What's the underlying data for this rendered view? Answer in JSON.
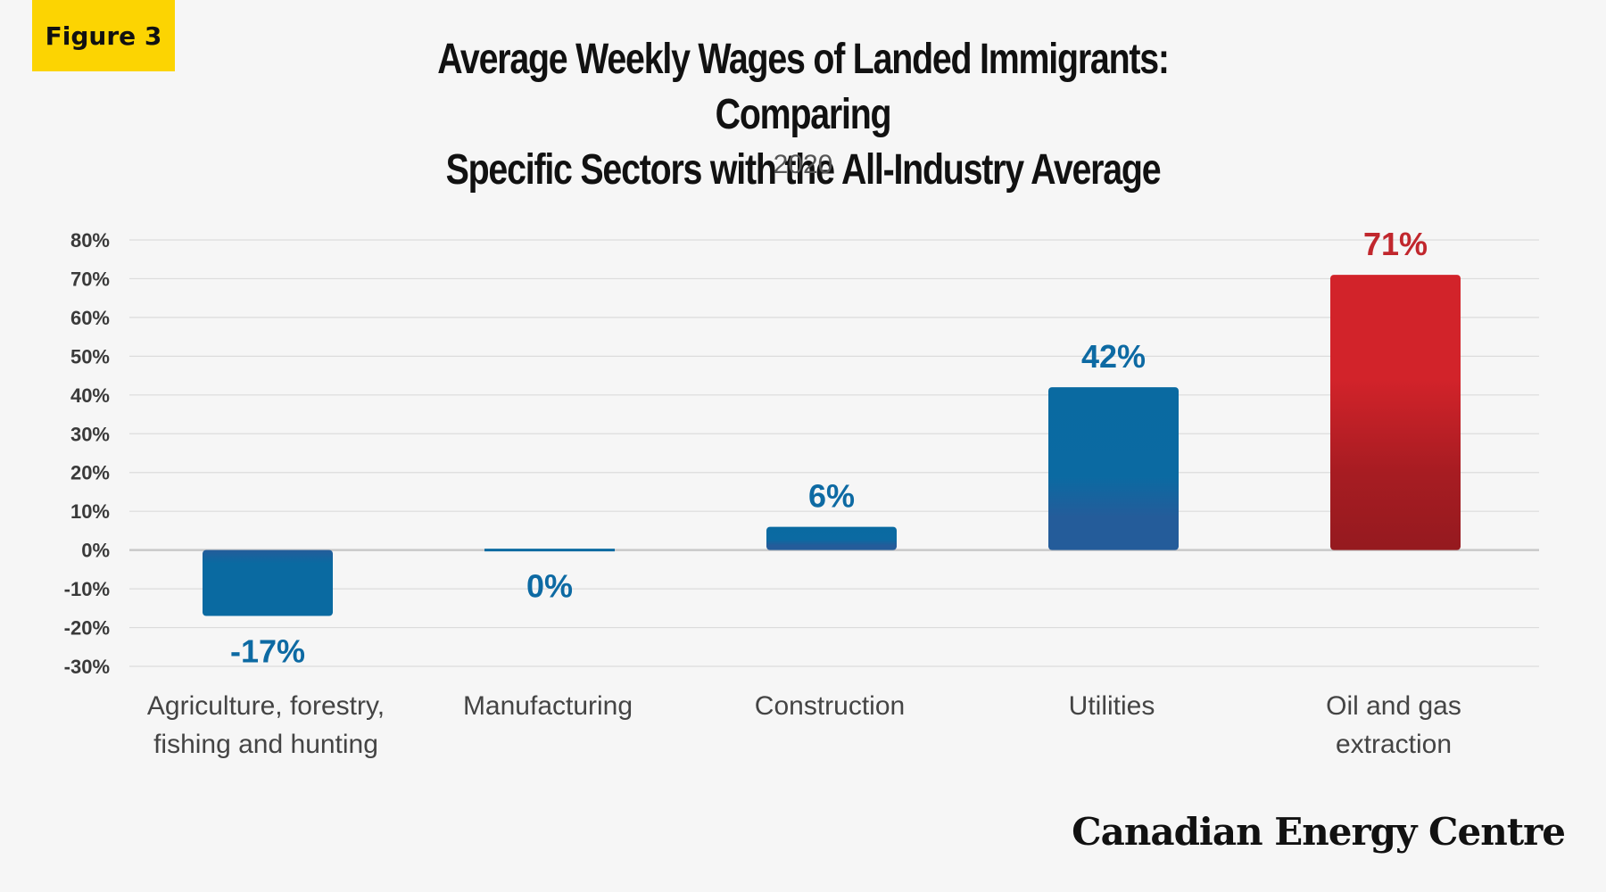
{
  "badge": "Figure 3",
  "title_line1": "Average Weekly Wages of Landed Immigrants: Comparing",
  "title_line2": "Specific Sectors with the All-Industry Average",
  "brand": "Canadian Energy Centre",
  "colors": {
    "badge": "#fcd402",
    "blue": "#0a6aa1",
    "red": "#d2232a",
    "grid": "#dcdcdc",
    "background": "#f6f6f6"
  },
  "chart_data": {
    "type": "bar",
    "title": "Average Weekly Wages of Landed Immigrants: Comparing Specific Sectors with the All-Industry Average",
    "subtitle": "2020",
    "categories": [
      [
        "Agriculture, forestry,",
        "fishing and hunting"
      ],
      [
        "Manufacturing"
      ],
      [
        "Construction"
      ],
      [
        "Utilities"
      ],
      [
        "Oil and gas",
        "extraction"
      ]
    ],
    "values": [
      -17,
      0,
      6,
      42,
      71
    ],
    "data_labels": [
      "-17%",
      "0%",
      "6%",
      "42%",
      "71%"
    ],
    "bar_colors": [
      "blue",
      "blue",
      "blue",
      "blue",
      "red"
    ],
    "ylim": [
      -30,
      80
    ],
    "yticks": [
      80,
      70,
      60,
      50,
      40,
      30,
      20,
      10,
      0,
      -10,
      -20,
      -30
    ],
    "ytick_labels": [
      "80%",
      "70%",
      "60%",
      "50%",
      "40%",
      "30%",
      "20%",
      "10%",
      "0%",
      "-10%",
      "-20%",
      "-30%"
    ],
    "xlabel": "",
    "ylabel": "",
    "grid": true,
    "legend": "none"
  }
}
